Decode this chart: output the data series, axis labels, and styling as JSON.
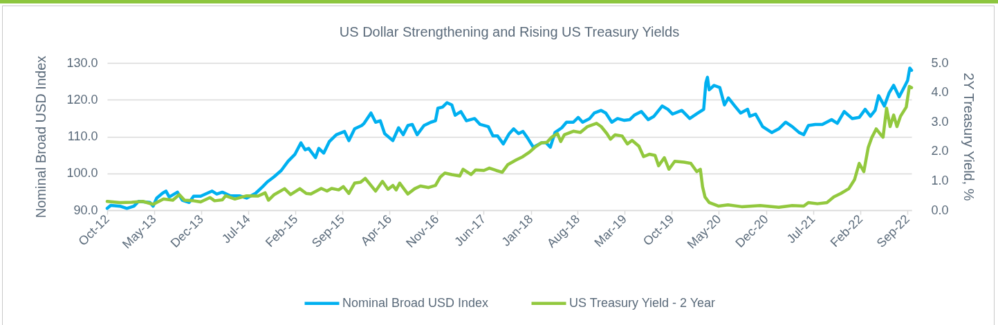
{
  "chart_data": {
    "type": "line",
    "title": "US Dollar Strengthening and Rising US Treasury Yields",
    "ylabel": "Nominal Broad USD Index",
    "y2label": "2Y Treasury Yield, %",
    "xlim": [
      "2012-10-01",
      "2022-09-20"
    ],
    "xticks": [
      {
        "value": "2012-10-01",
        "label": "Oct-12"
      },
      {
        "value": "2013-05-01",
        "label": "May-13"
      },
      {
        "value": "2013-12-01",
        "label": "Dec-13"
      },
      {
        "value": "2014-07-01",
        "label": "Jul-14"
      },
      {
        "value": "2015-02-01",
        "label": "Feb-15"
      },
      {
        "value": "2015-09-01",
        "label": "Sep-15"
      },
      {
        "value": "2016-04-01",
        "label": "Apr-16"
      },
      {
        "value": "2016-11-01",
        "label": "Nov-16"
      },
      {
        "value": "2017-06-01",
        "label": "Jun-17"
      },
      {
        "value": "2018-01-01",
        "label": "Jan-18"
      },
      {
        "value": "2018-08-01",
        "label": "Aug-18"
      },
      {
        "value": "2019-03-01",
        "label": "Mar-19"
      },
      {
        "value": "2019-10-01",
        "label": "Oct-19"
      },
      {
        "value": "2020-05-01",
        "label": "May-20"
      },
      {
        "value": "2020-12-01",
        "label": "Dec-20"
      },
      {
        "value": "2021-07-01",
        "label": "Jul-21"
      },
      {
        "value": "2022-02-01",
        "label": "Feb-22"
      },
      {
        "value": "2022-09-01",
        "label": "Sep-22"
      }
    ],
    "ylim": [
      90,
      130
    ],
    "yticks": [
      {
        "value": 90,
        "label": "90.0"
      },
      {
        "value": 100,
        "label": "100.0"
      },
      {
        "value": 110,
        "label": "110.0"
      },
      {
        "value": 120,
        "label": "120.0"
      },
      {
        "value": 130,
        "label": "130.0"
      }
    ],
    "y2lim": [
      0,
      5
    ],
    "y2ticks": [
      {
        "value": 0,
        "label": "0.0"
      },
      {
        "value": 1,
        "label": "1.0"
      },
      {
        "value": 2,
        "label": "2.0"
      },
      {
        "value": 3,
        "label": "3.0"
      },
      {
        "value": 4,
        "label": "4.0"
      },
      {
        "value": 5,
        "label": "5.0"
      }
    ],
    "grid": "y",
    "legend": "bottom",
    "line_style": "solid",
    "series": [
      {
        "name": "Nominal Broad USD Index",
        "color": "#00b0f0",
        "x": [
          "2012-10-01",
          "2012-10-17",
          "2012-11-28",
          "2012-12-29",
          "2013-01-30",
          "2013-02-20",
          "2013-04-12",
          "2013-04-27",
          "2013-05-13",
          "2013-06-08",
          "2013-06-24",
          "2013-07-09",
          "2013-08-15",
          "2013-09-06",
          "2013-10-07",
          "2013-10-27",
          "2013-11-28",
          "2014-01-19",
          "2014-02-09",
          "2014-03-06",
          "2014-04-12",
          "2014-05-23",
          "2014-06-24",
          "2014-08-04",
          "2014-09-05",
          "2014-09-26",
          "2014-10-27",
          "2014-11-28",
          "2014-12-29",
          "2015-01-29",
          "2015-02-25",
          "2015-03-16",
          "2015-04-01",
          "2015-05-02",
          "2015-05-17",
          "2015-06-08",
          "2015-07-03",
          "2015-08-04",
          "2015-09-10",
          "2015-09-30",
          "2015-10-26",
          "2015-11-27",
          "2015-12-08",
          "2016-01-08",
          "2016-01-29",
          "2016-02-19",
          "2016-03-10",
          "2016-04-16",
          "2016-05-12",
          "2016-06-02",
          "2016-06-23",
          "2016-07-13",
          "2016-08-04",
          "2016-09-04",
          "2016-10-05",
          "2016-10-26",
          "2016-11-06",
          "2016-11-27",
          "2016-12-17",
          "2017-01-08",
          "2017-01-23",
          "2017-02-18",
          "2017-03-15",
          "2017-04-21",
          "2017-05-16",
          "2017-06-22",
          "2017-07-13",
          "2017-08-03",
          "2017-08-29",
          "2017-09-25",
          "2017-10-15",
          "2017-11-06",
          "2017-11-26",
          "2017-12-17",
          "2018-01-12",
          "2018-02-18",
          "2018-03-09",
          "2018-03-30",
          "2018-04-20",
          "2018-05-21",
          "2018-06-11",
          "2018-07-12",
          "2018-08-03",
          "2018-08-23",
          "2018-09-24",
          "2018-10-15",
          "2018-11-15",
          "2018-12-06",
          "2019-01-02",
          "2019-01-28",
          "2019-02-28",
          "2019-03-24",
          "2019-04-14",
          "2019-05-16",
          "2019-06-16",
          "2019-07-12",
          "2019-08-18",
          "2019-09-13",
          "2019-10-04",
          "2019-11-15",
          "2019-12-21",
          "2020-01-27",
          "2020-02-22",
          "2020-03-03",
          "2020-03-10",
          "2020-03-18",
          "2020-04-09",
          "2020-05-05",
          "2020-05-26",
          "2020-06-13",
          "2020-07-12",
          "2020-08-07",
          "2020-09-08",
          "2020-09-18",
          "2020-10-14",
          "2020-11-15",
          "2020-12-26",
          "2021-01-27",
          "2021-02-27",
          "2021-03-29",
          "2021-04-29",
          "2021-05-20",
          "2021-06-10",
          "2021-07-11",
          "2021-08-12",
          "2021-09-23",
          "2021-10-19",
          "2021-11-19",
          "2021-12-25",
          "2022-01-26",
          "2022-02-22",
          "2022-03-18",
          "2022-04-08",
          "2022-04-24",
          "2022-05-20",
          "2022-06-10",
          "2022-07-01",
          "2022-07-26",
          "2022-08-22",
          "2022-09-02",
          "2022-09-12",
          "2022-09-20"
        ],
        "values": [
          90.5,
          91.3,
          91.1,
          90.5,
          91.1,
          92.4,
          92.1,
          91.1,
          93.3,
          94.6,
          95.2,
          93.6,
          94.9,
          92.7,
          92.1,
          93.8,
          93.8,
          95.2,
          94.4,
          94.9,
          93.9,
          93.9,
          93.3,
          94.6,
          96.4,
          97.7,
          99.1,
          100.8,
          103.3,
          105.2,
          108.3,
          106.4,
          106.8,
          104.3,
          106.8,
          105.5,
          108.6,
          110.5,
          111.4,
          108.9,
          112.1,
          113.0,
          113.6,
          116.4,
          113.9,
          114.3,
          110.8,
          108.9,
          112.4,
          110.5,
          113.0,
          113.3,
          110.5,
          113.0,
          113.9,
          114.3,
          117.7,
          118.0,
          119.2,
          118.6,
          115.8,
          116.8,
          114.3,
          114.9,
          113.3,
          112.7,
          110.2,
          110.2,
          108.0,
          110.8,
          112.1,
          110.8,
          111.4,
          109.6,
          107.1,
          108.3,
          108.4,
          107.1,
          111.1,
          112.4,
          113.9,
          113.9,
          115.2,
          113.9,
          114.9,
          116.4,
          117.1,
          116.4,
          113.9,
          114.9,
          114.4,
          114.6,
          115.8,
          116.8,
          114.6,
          115.5,
          118.3,
          117.4,
          116.1,
          117.1,
          114.9,
          116.4,
          117.4,
          124.6,
          126.1,
          122.7,
          123.9,
          123.3,
          118.6,
          120.5,
          118.3,
          116.4,
          117.4,
          115.5,
          116.1,
          112.7,
          111.1,
          112.1,
          113.9,
          112.7,
          111.1,
          110.5,
          113.0,
          113.3,
          113.3,
          114.6,
          113.6,
          116.8,
          114.9,
          115.2,
          117.4,
          115.5,
          117.1,
          121.1,
          118.3,
          121.8,
          123.9,
          120.8,
          123.9,
          125.2,
          128.6,
          128.0
        ]
      },
      {
        "name": "US Treasury Yield - 2 Year",
        "color": "#92c83e",
        "axis": "y2",
        "x": [
          "2012-10-01",
          "2012-11-28",
          "2013-01-20",
          "2013-03-11",
          "2013-04-27",
          "2013-06-13",
          "2013-07-25",
          "2013-08-23",
          "2013-09-16",
          "2013-10-27",
          "2013-11-28",
          "2014-01-09",
          "2014-01-30",
          "2014-03-06",
          "2014-03-21",
          "2014-05-02",
          "2014-06-24",
          "2014-08-15",
          "2014-09-16",
          "2014-10-01",
          "2014-10-27",
          "2014-12-13",
          "2015-01-09",
          "2015-02-20",
          "2015-03-21",
          "2015-04-11",
          "2015-05-28",
          "2015-06-23",
          "2015-07-14",
          "2015-08-15",
          "2015-09-05",
          "2015-09-30",
          "2015-10-26",
          "2015-11-22",
          "2015-12-13",
          "2016-01-29",
          "2016-02-29",
          "2016-03-25",
          "2016-04-16",
          "2016-05-01",
          "2016-05-17",
          "2016-06-23",
          "2016-07-24",
          "2016-08-19",
          "2016-09-25",
          "2016-10-26",
          "2016-11-16",
          "2016-12-07",
          "2017-01-08",
          "2017-02-13",
          "2017-02-28",
          "2017-04-05",
          "2017-04-26",
          "2017-06-02",
          "2017-06-27",
          "2017-07-28",
          "2017-08-24",
          "2017-09-19",
          "2017-10-25",
          "2017-11-26",
          "2017-12-27",
          "2018-01-18",
          "2018-02-18",
          "2018-03-14",
          "2018-04-05",
          "2018-05-01",
          "2018-05-16",
          "2018-06-01",
          "2018-07-12",
          "2018-08-13",
          "2018-09-14",
          "2018-10-25",
          "2018-11-15",
          "2018-12-11",
          "2018-12-27",
          "2019-01-17",
          "2019-02-18",
          "2019-03-14",
          "2019-04-04",
          "2019-05-05",
          "2019-05-26",
          "2019-06-21",
          "2019-07-17",
          "2019-08-02",
          "2019-08-28",
          "2019-09-18",
          "2019-10-14",
          "2019-11-25",
          "2019-12-26",
          "2020-01-22",
          "2020-02-07",
          "2020-02-17",
          "2020-02-28",
          "2020-03-18",
          "2020-04-30",
          "2020-06-11",
          "2020-08-12",
          "2020-11-04",
          "2021-01-27",
          "2021-03-29",
          "2021-05-20",
          "2021-06-10",
          "2021-07-21",
          "2021-09-02",
          "2021-10-03",
          "2021-11-04",
          "2021-12-10",
          "2022-01-05",
          "2022-01-26",
          "2022-02-16",
          "2022-03-08",
          "2022-03-23",
          "2022-04-13",
          "2022-05-04",
          "2022-05-14",
          "2022-05-30",
          "2022-06-15",
          "2022-07-01",
          "2022-07-16",
          "2022-08-01",
          "2022-08-27",
          "2022-09-10",
          "2022-09-20"
        ],
        "values": [
          0.3,
          0.26,
          0.27,
          0.3,
          0.2,
          0.38,
          0.34,
          0.53,
          0.34,
          0.32,
          0.28,
          0.43,
          0.32,
          0.35,
          0.49,
          0.38,
          0.49,
          0.48,
          0.59,
          0.34,
          0.53,
          0.73,
          0.53,
          0.73,
          0.57,
          0.55,
          0.74,
          0.65,
          0.74,
          0.69,
          0.8,
          0.57,
          0.92,
          0.95,
          1.08,
          0.65,
          0.98,
          0.71,
          0.84,
          0.69,
          0.92,
          0.55,
          0.73,
          0.82,
          0.77,
          0.84,
          1.12,
          1.26,
          1.21,
          1.16,
          1.39,
          1.21,
          1.37,
          1.35,
          1.43,
          1.35,
          1.29,
          1.55,
          1.7,
          1.82,
          1.98,
          2.13,
          2.29,
          2.3,
          2.48,
          2.6,
          2.33,
          2.56,
          2.68,
          2.64,
          2.84,
          2.95,
          2.84,
          2.6,
          2.41,
          2.56,
          2.52,
          2.25,
          2.37,
          2.17,
          1.82,
          1.9,
          1.86,
          1.51,
          1.78,
          1.39,
          1.66,
          1.63,
          1.59,
          1.31,
          1.39,
          0.8,
          0.45,
          0.26,
          0.14,
          0.18,
          0.12,
          0.16,
          0.1,
          0.16,
          0.14,
          0.26,
          0.22,
          0.26,
          0.45,
          0.57,
          0.73,
          1.04,
          1.59,
          1.31,
          2.13,
          2.45,
          2.76,
          2.56,
          2.48,
          3.46,
          2.84,
          3.23,
          2.84,
          3.19,
          3.5,
          4.2,
          4.16
        ]
      }
    ]
  }
}
